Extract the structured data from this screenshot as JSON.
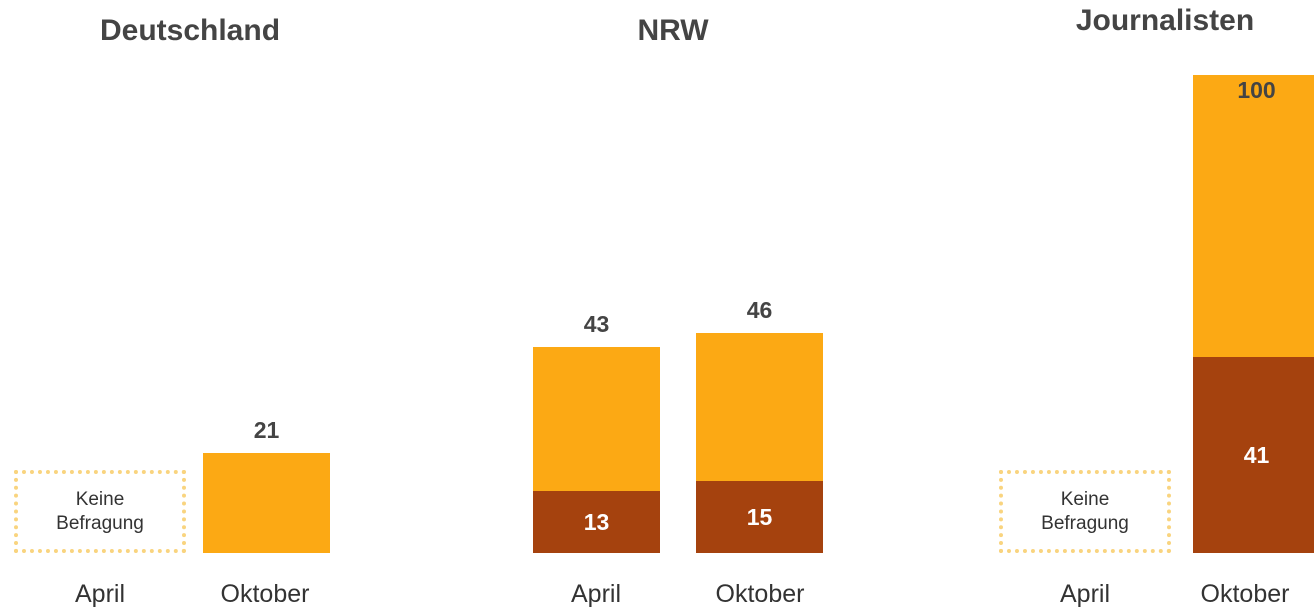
{
  "chart_data": [
    {
      "type": "bar",
      "title": "Deutschland",
      "categories": [
        "April",
        "Oktober"
      ],
      "series": [
        {
          "color": "#fca914",
          "values": [
            null,
            21
          ]
        },
        {
          "color": "#a5420e",
          "values": [
            null,
            null
          ]
        }
      ],
      "annotation": "Keine Befragung"
    },
    {
      "type": "bar",
      "title": "NRW",
      "categories": [
        "April",
        "Oktober"
      ],
      "series": [
        {
          "color": "#fca914",
          "values": [
            43,
            46
          ]
        },
        {
          "color": "#a5420e",
          "values": [
            13,
            15
          ]
        }
      ]
    },
    {
      "type": "bar",
      "title": "Journalisten",
      "categories": [
        "April",
        "Oktober"
      ],
      "series": [
        {
          "color": "#fca914",
          "values": [
            null,
            100
          ]
        },
        {
          "color": "#a5420e",
          "values": [
            null,
            41
          ]
        }
      ],
      "annotation": "Keine Befragung"
    }
  ]
}
